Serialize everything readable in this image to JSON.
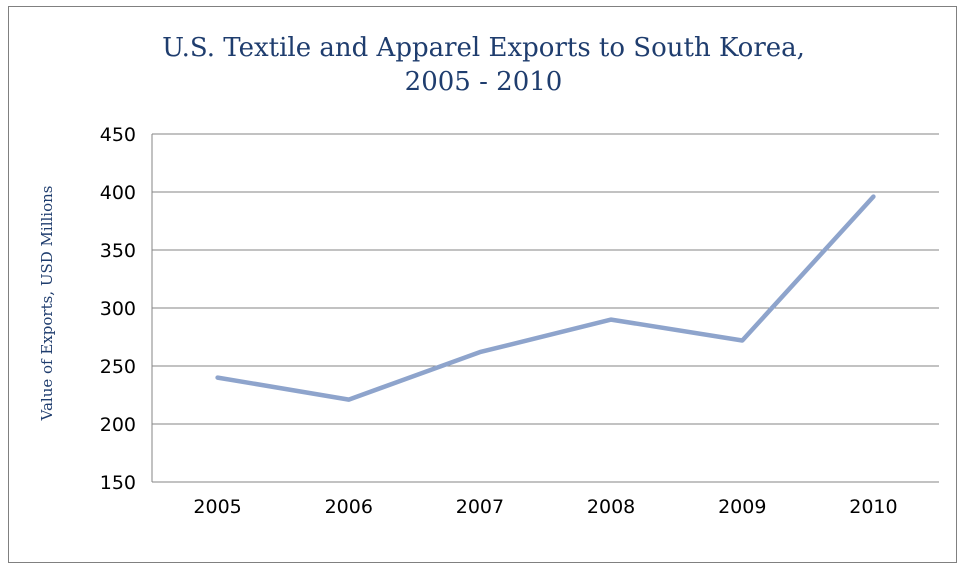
{
  "chart_data": {
    "type": "line",
    "title_line1": "U.S. Textile and Apparel Exports to South Korea,",
    "title_line2": "2005 - 2010",
    "xlabel": "",
    "ylabel": "Value of Exports, USD Millions",
    "categories": [
      "2005",
      "2006",
      "2007",
      "2008",
      "2009",
      "2010"
    ],
    "series": [
      {
        "values": [
          240,
          221,
          262,
          290,
          272,
          396
        ],
        "color": "#8ea4cc"
      }
    ],
    "ylim": [
      150,
      450
    ],
    "yticks": [
      150,
      200,
      250,
      300,
      350,
      400,
      450
    ],
    "grid": true,
    "legend": "none"
  }
}
